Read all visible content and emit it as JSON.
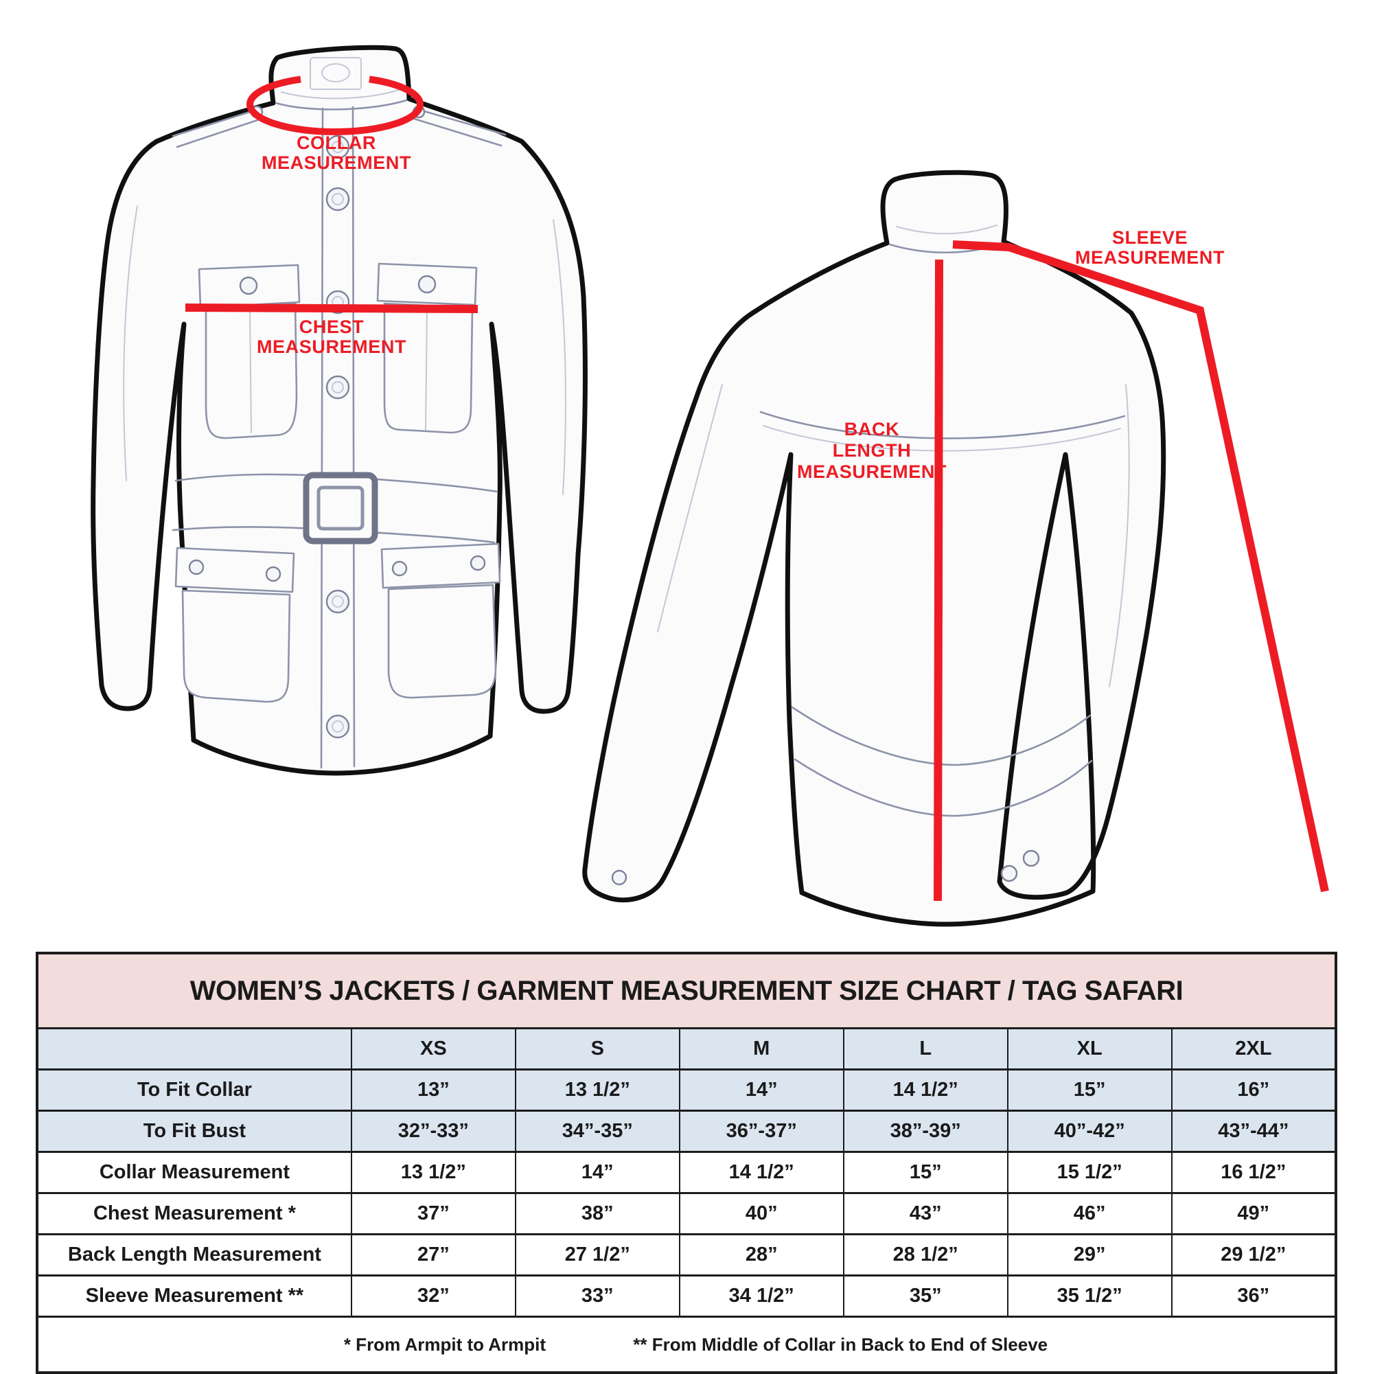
{
  "colors": {
    "red": "#ed1c24",
    "pink": "#f2dcdc",
    "blue": "#dae5f0"
  },
  "diagram": {
    "front_view": {
      "collar_label_line1": "COLLAR",
      "collar_label_line2": "MEASUREMENT",
      "chest_label_line1": "CHEST",
      "chest_label_line2": "MEASUREMENT"
    },
    "back_view": {
      "back_label_line1": "BACK",
      "back_label_line2": "LENGTH",
      "back_label_line3": "MEASUREMENT",
      "sleeve_label_line1": "SLEEVE",
      "sleeve_label_line2": "MEASUREMENT"
    }
  },
  "table": {
    "title": "WOMEN’S JACKETS / GARMENT MEASUREMENT SIZE CHART / TAG SAFARI",
    "columns": [
      "XS",
      "S",
      "M",
      "L",
      "XL",
      "2XL"
    ],
    "rows": [
      {
        "label": "To Fit Collar",
        "shade": true,
        "values": [
          "13”",
          "13 1/2”",
          "14”",
          "14 1/2”",
          "15”",
          "16”"
        ]
      },
      {
        "label": "To Fit Bust",
        "shade": true,
        "values": [
          "32”-33”",
          "34”-35”",
          "36”-37”",
          "38”-39”",
          "40”-42”",
          "43”-44”"
        ]
      },
      {
        "label": "Collar Measurement",
        "shade": false,
        "values": [
          "13 1/2”",
          "14”",
          "14 1/2”",
          "15”",
          "15 1/2”",
          "16 1/2”"
        ]
      },
      {
        "label": "Chest Measurement *",
        "shade": false,
        "values": [
          "37”",
          "38”",
          "40”",
          "43”",
          "46”",
          "49”"
        ]
      },
      {
        "label": "Back Length Measurement",
        "shade": false,
        "values": [
          "27”",
          "27 1/2”",
          "28”",
          "28 1/2”",
          "29”",
          "29 1/2”"
        ]
      },
      {
        "label": "Sleeve Measurement **",
        "shade": false,
        "values": [
          "32”",
          "33”",
          "34 1/2”",
          "35”",
          "35 1/2”",
          "36”"
        ]
      }
    ],
    "footnotes": [
      "* From Armpit to Armpit",
      "** From Middle of Collar in Back to End of Sleeve"
    ]
  }
}
